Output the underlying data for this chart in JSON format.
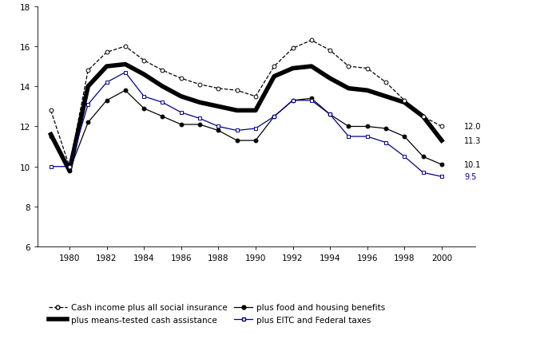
{
  "years": [
    1979,
    1980,
    1981,
    1982,
    1983,
    1984,
    1985,
    1986,
    1987,
    1988,
    1989,
    1990,
    1991,
    1992,
    1993,
    1994,
    1995,
    1996,
    1997,
    1998,
    1999,
    2000
  ],
  "cash_income": [
    12.8,
    10.0,
    14.8,
    15.7,
    16.0,
    15.3,
    14.8,
    14.4,
    14.1,
    13.9,
    13.8,
    13.5,
    15.0,
    15.9,
    16.3,
    15.8,
    15.0,
    14.9,
    14.2,
    13.3,
    12.5,
    12.0
  ],
  "means_tested": [
    11.6,
    9.8,
    14.0,
    15.0,
    15.1,
    14.6,
    14.0,
    13.5,
    13.2,
    13.0,
    12.8,
    12.8,
    14.5,
    14.9,
    15.0,
    14.4,
    13.9,
    13.8,
    13.5,
    13.2,
    12.5,
    11.3
  ],
  "food_housing": [
    11.5,
    9.8,
    12.2,
    13.3,
    13.8,
    12.9,
    12.5,
    12.1,
    12.1,
    11.8,
    11.3,
    11.3,
    12.5,
    13.3,
    13.4,
    12.6,
    12.0,
    12.0,
    11.9,
    11.5,
    10.5,
    10.1
  ],
  "eitc_federal": [
    10.0,
    10.0,
    13.1,
    14.2,
    14.7,
    13.5,
    13.2,
    12.7,
    12.4,
    12.0,
    11.8,
    11.9,
    12.5,
    13.3,
    13.3,
    12.6,
    11.5,
    11.5,
    11.2,
    10.5,
    9.7,
    9.5
  ],
  "ylim": [
    6,
    18
  ],
  "yticks": [
    6,
    8,
    10,
    12,
    14,
    16,
    18
  ],
  "xticks": [
    1980,
    1982,
    1984,
    1986,
    1988,
    1990,
    1992,
    1994,
    1996,
    1998,
    2000
  ],
  "end_labels": [
    "12.0",
    "11.3",
    "10.1",
    "9.5"
  ],
  "legend_labels": [
    "Cash income plus all social insurance",
    "plus means-tested cash assistance",
    "plus food and housing benefits",
    "plus EITC and Federal taxes"
  ],
  "color_black": "#000000",
  "color_eitc": "#00008B",
  "background_color": "#ffffff"
}
